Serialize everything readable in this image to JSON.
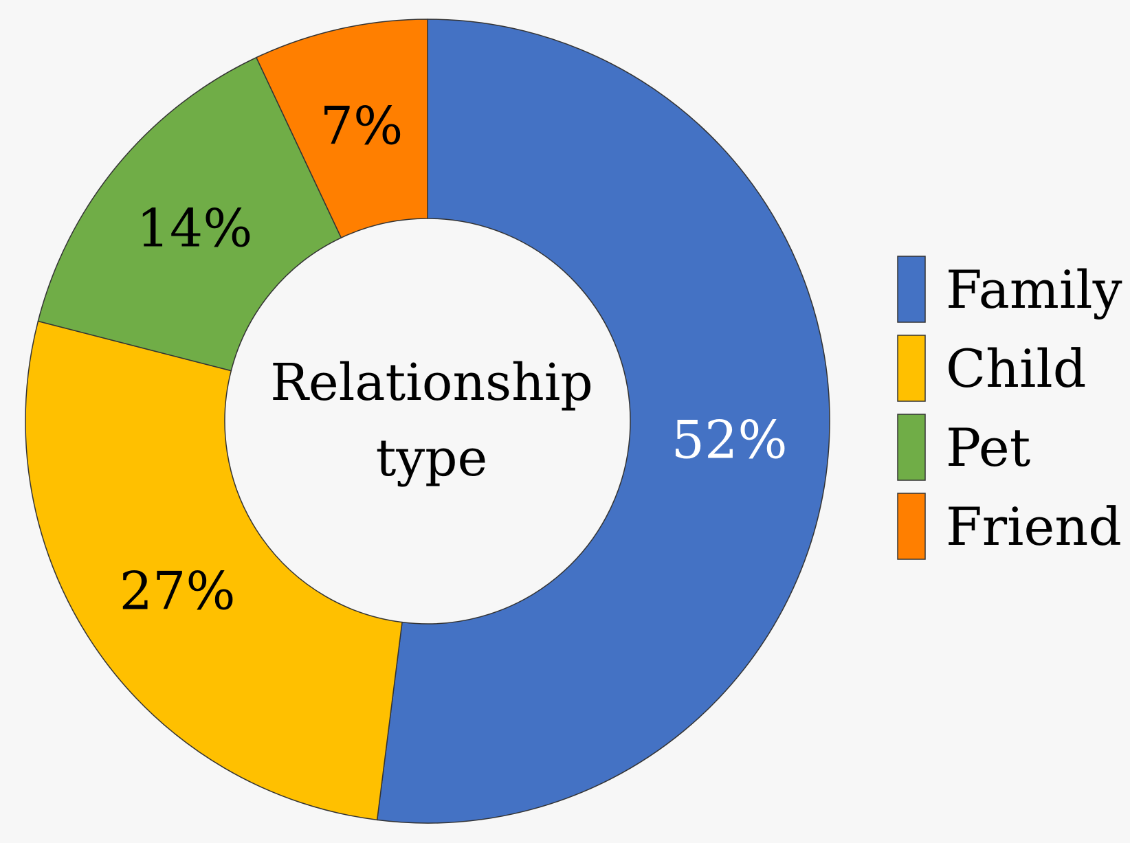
{
  "chart_data": {
    "type": "pie",
    "donut": true,
    "title": "",
    "center_label": [
      "Relationship",
      "type"
    ],
    "categories": [
      "Family",
      "Child",
      "Pet",
      "Friend"
    ],
    "values": [
      52,
      27,
      14,
      7
    ],
    "value_labels": [
      "52%",
      "27%",
      "14%",
      "7%"
    ],
    "colors": [
      "#4472C4",
      "#FFC000",
      "#70AD47",
      "#FF7F00"
    ],
    "label_colors": [
      "#ffffff",
      "#000000",
      "#000000",
      "#000000"
    ],
    "legend_position": "right"
  }
}
